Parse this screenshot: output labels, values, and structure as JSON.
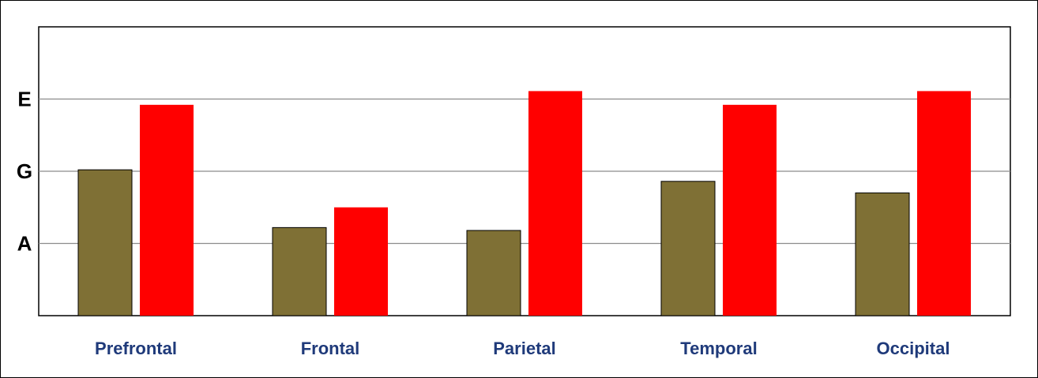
{
  "chart_data": {
    "type": "bar",
    "categories": [
      "Prefrontal",
      "Frontal",
      "Parietal",
      "Temporal",
      "Occipital"
    ],
    "series": [
      {
        "color": "#7f7035",
        "values": [
          2.02,
          1.22,
          1.18,
          1.86,
          1.7
        ]
      },
      {
        "color": "#ff0000",
        "values": [
          2.92,
          1.5,
          3.11,
          2.92,
          3.11
        ]
      }
    ],
    "ylim": [
      0,
      4
    ],
    "yticks": [
      {
        "value": 1,
        "label": "A"
      },
      {
        "value": 2,
        "label": "G"
      },
      {
        "value": 3,
        "label": "E"
      }
    ],
    "grid": true,
    "tick_label_color": "#1f3a7a",
    "axis_color": "#000000"
  }
}
